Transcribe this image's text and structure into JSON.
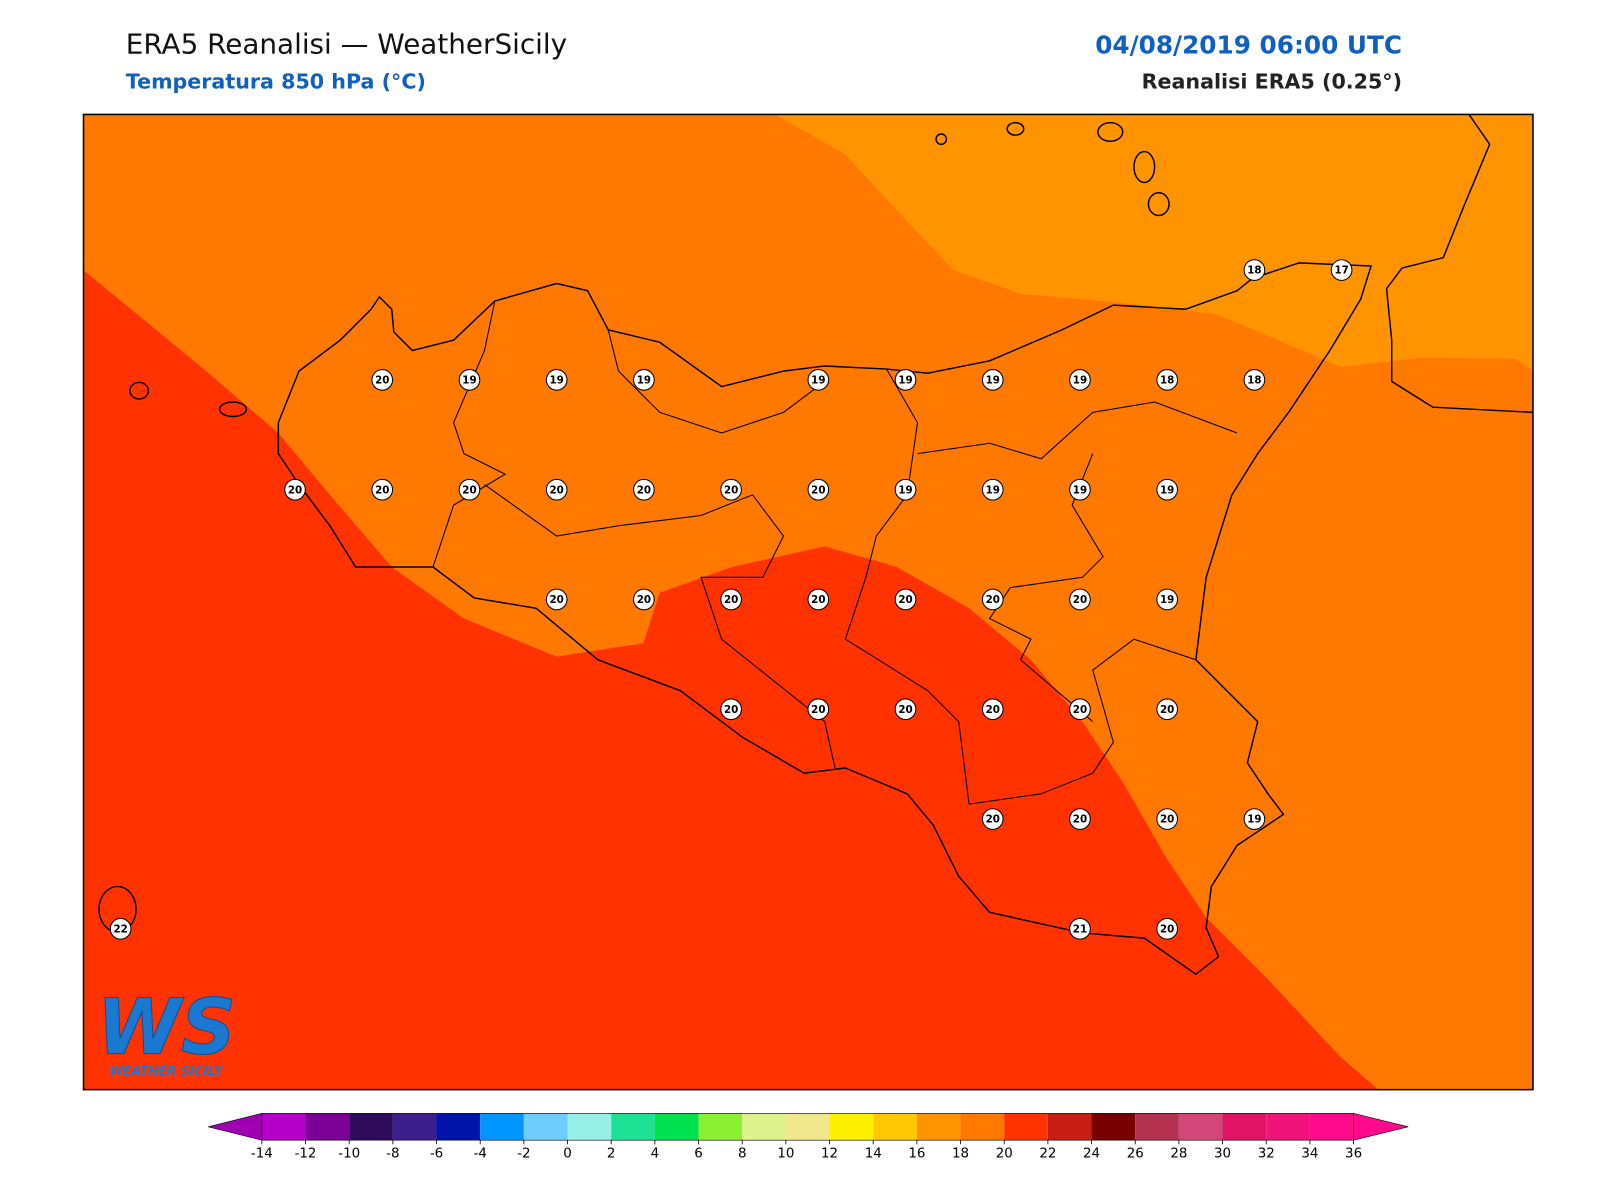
{
  "header": {
    "title": "ERA5 Reanalisi — WeatherSicily",
    "subtitle": "Temperatura 850 hPa (°C)",
    "date": "04/08/2019 06:00 UTC",
    "source": "Reanalisi ERA5 (0.25°)"
  },
  "stations": [
    [
      null,
      null,
      null,
      null,
      null,
      null,
      null,
      null,
      null,
      null,
      null,
      null,
      null,
      18,
      17
    ],
    [
      null,
      null,
      null,
      20,
      19,
      19,
      19,
      null,
      19,
      19,
      19,
      19,
      18,
      18,
      null
    ],
    [
      null,
      null,
      20,
      20,
      20,
      20,
      20,
      20,
      20,
      19,
      19,
      19,
      19,
      null,
      null
    ],
    [
      null,
      null,
      null,
      null,
      null,
      20,
      20,
      20,
      20,
      20,
      20,
      20,
      19,
      null,
      null
    ],
    [
      null,
      null,
      null,
      null,
      null,
      null,
      null,
      20,
      20,
      20,
      20,
      20,
      20,
      null,
      null
    ],
    [
      null,
      null,
      null,
      null,
      null,
      null,
      null,
      null,
      null,
      null,
      20,
      20,
      20,
      19,
      null
    ],
    [
      22,
      null,
      null,
      null,
      null,
      null,
      null,
      null,
      null,
      null,
      null,
      21,
      20,
      null,
      null
    ]
  ],
  "colorbar": {
    "ticks": [
      -14,
      -12,
      -10,
      -8,
      -6,
      -4,
      -2,
      0,
      2,
      4,
      6,
      8,
      10,
      12,
      14,
      16,
      18,
      20,
      22,
      24,
      26,
      28,
      30,
      32,
      34,
      36
    ],
    "colors": [
      "#b400c8",
      "#7d0096",
      "#2d0a5a",
      "#3c1e8c",
      "#0014aa",
      "#0096ff",
      "#6ecdfa",
      "#96f0e6",
      "#1ee196",
      "#00e150",
      "#8cf032",
      "#dcf08c",
      "#f0e68c",
      "#fff000",
      "#ffc800",
      "#ff9300",
      "#ff7800",
      "#ff3200",
      "#c81e14",
      "#780000",
      "#b43250",
      "#d24678",
      "#e11464",
      "#f0147a",
      "#ff0a8c"
    ],
    "under": "#a000b4",
    "over": "#ff0a8c"
  },
  "logo": {
    "mark": "WS",
    "name": "WEATHER SICILY"
  }
}
